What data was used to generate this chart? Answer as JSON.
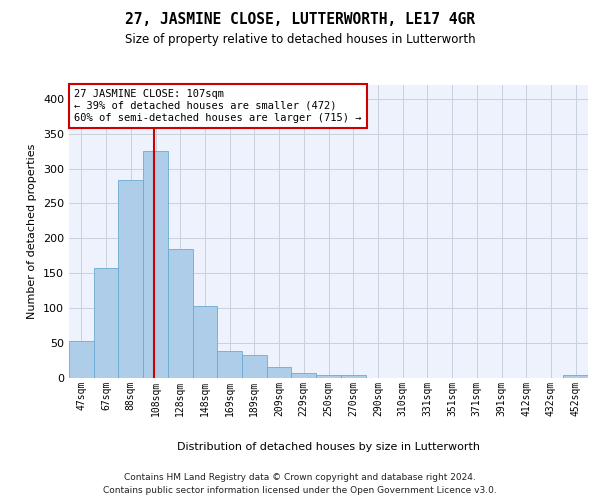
{
  "title": "27, JASMINE CLOSE, LUTTERWORTH, LE17 4GR",
  "subtitle": "Size of property relative to detached houses in Lutterworth",
  "xlabel": "Distribution of detached houses by size in Lutterworth",
  "ylabel": "Number of detached properties",
  "footer_line1": "Contains HM Land Registry data © Crown copyright and database right 2024.",
  "footer_line2": "Contains public sector information licensed under the Open Government Licence v3.0.",
  "bin_labels": [
    "47sqm",
    "67sqm",
    "88sqm",
    "108sqm",
    "128sqm",
    "148sqm",
    "169sqm",
    "189sqm",
    "209sqm",
    "229sqm",
    "250sqm",
    "270sqm",
    "290sqm",
    "310sqm",
    "331sqm",
    "351sqm",
    "371sqm",
    "391sqm",
    "412sqm",
    "432sqm",
    "452sqm"
  ],
  "bar_values": [
    52,
    157,
    283,
    325,
    184,
    102,
    38,
    32,
    15,
    6,
    3,
    4,
    0,
    0,
    0,
    0,
    0,
    0,
    0,
    0,
    4
  ],
  "bar_color": "#aecde8",
  "bar_edge_color": "#6aaad4",
  "vline_color": "#cc0000",
  "ylim": [
    0,
    420
  ],
  "yticks": [
    0,
    50,
    100,
    150,
    200,
    250,
    300,
    350,
    400
  ],
  "bg_color": "#eef2fc",
  "annotation_line1": "27 JASMINE CLOSE: 107sqm",
  "annotation_line2": "← 39% of detached houses are smaller (472)",
  "annotation_line3": "60% of semi-detached houses are larger (715) →",
  "annotation_box_color": "#ffffff",
  "annotation_box_edge": "#cc0000",
  "grid_color": "#c8cfe0"
}
